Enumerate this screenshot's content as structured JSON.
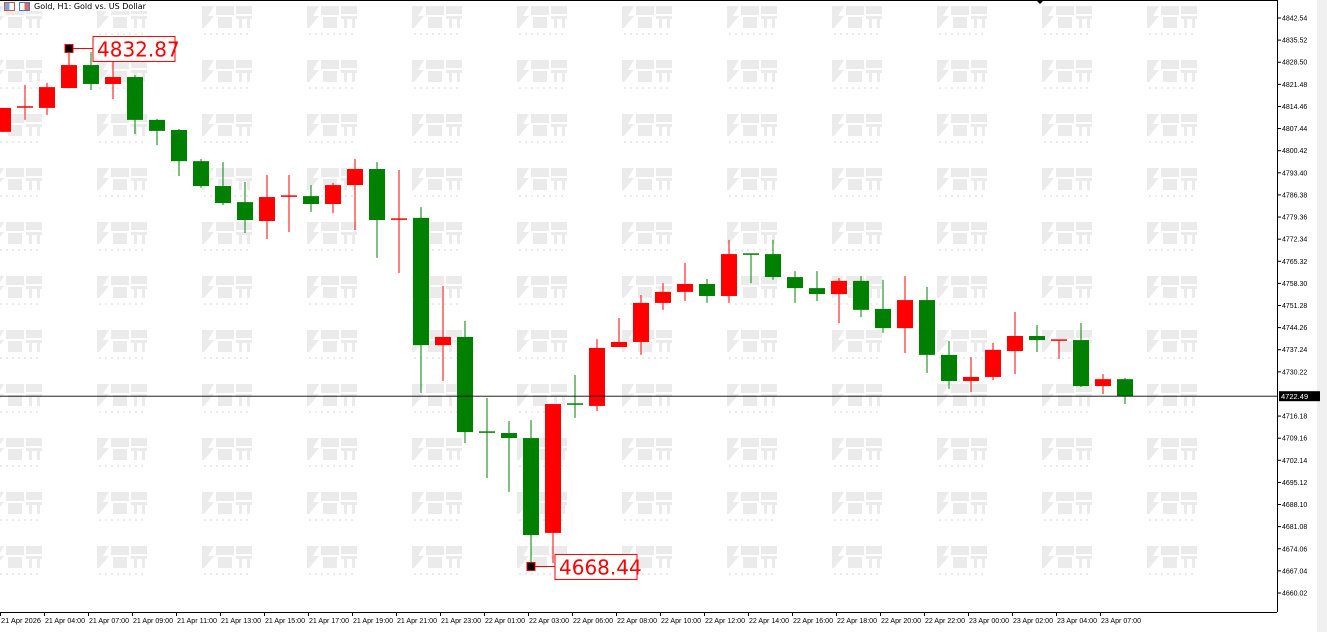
{
  "header": {
    "title": "Gold, H1:  Gold vs. US Dollar"
  },
  "watermark": {
    "text": "智昇",
    "subtext": "ZHISHENG"
  },
  "colors": {
    "up": "#ff0000",
    "down": "#008000",
    "axis": "#000000",
    "price_line": "#000000",
    "annotation": "#ff0000"
  },
  "chart_data": {
    "type": "candlestick",
    "title": "Gold, H1:  Gold vs. US Dollar",
    "up_color": "red",
    "down_color": "green",
    "ylim": [
      4656,
      4850
    ],
    "yticks": [
      "4842.54",
      "4835.52",
      "4828.50",
      "4821.48",
      "4814.46",
      "4807.44",
      "4800.42",
      "4793.40",
      "4786.38",
      "4779.36",
      "4772.34",
      "4765.32",
      "4758.30",
      "4751.28",
      "4744.26",
      "4737.24",
      "4730.22",
      "4716.18",
      "4709.16",
      "4702.14",
      "4695.12",
      "4688.10",
      "4681.08",
      "4674.06",
      "4667.04",
      "4660.02"
    ],
    "xticks": [
      "21 Apr 2026",
      "21 Apr 04:00",
      "21 Apr 07:00",
      "21 Apr 09:00",
      "21 Apr 11:00",
      "21 Apr 13:00",
      "21 Apr 15:00",
      "21 Apr 17:00",
      "21 Apr 19:00",
      "21 Apr 21:00",
      "21 Apr 23:00",
      "22 Apr 01:00",
      "22 Apr 03:00",
      "22 Apr 06:00",
      "22 Apr 08:00",
      "22 Apr 10:00",
      "22 Apr 12:00",
      "22 Apr 14:00",
      "22 Apr 16:00",
      "22 Apr 18:00",
      "22 Apr 20:00",
      "22 Apr 22:00",
      "23 Apr 00:00",
      "23 Apr 02:00",
      "23 Apr 04:00",
      "23 Apr 07:00"
    ],
    "current_price": "4722.49",
    "annotations": [
      {
        "label": "4832.87",
        "price": 4832.87,
        "candle": 3
      },
      {
        "label": "4668.44",
        "price": 4668.44,
        "candle": 24
      }
    ],
    "ohlc": [
      [
        4806.4,
        4814.0,
        4806.4,
        4814.0
      ],
      [
        4814.0,
        4821.3,
        4810.2,
        4814.3
      ],
      [
        4814.0,
        4821.9,
        4811.8,
        4820.6
      ],
      [
        4820.3,
        4832.87,
        4820.3,
        4827.6
      ],
      [
        4827.6,
        4831.7,
        4819.7,
        4821.6
      ],
      [
        4821.6,
        4829.2,
        4816.8,
        4823.8
      ],
      [
        4823.8,
        4824.4,
        4805.7,
        4810.2
      ],
      [
        4810.2,
        4810.5,
        4802.2,
        4806.7
      ],
      [
        4807.0,
        4807.3,
        4792.4,
        4797.1
      ],
      [
        4797.1,
        4797.8,
        4788.6,
        4789.2
      ],
      [
        4789.2,
        4796.8,
        4783.2,
        4783.8
      ],
      [
        4784.1,
        4790.5,
        4774.3,
        4778.4
      ],
      [
        4778.1,
        4792.7,
        4772.4,
        4785.7
      ],
      [
        4785.7,
        4792.7,
        4774.6,
        4786.0
      ],
      [
        4786.0,
        4789.5,
        4781.0,
        4783.5
      ],
      [
        4783.5,
        4790.2,
        4780.6,
        4789.5
      ],
      [
        4789.5,
        4797.8,
        4775.2,
        4794.6
      ],
      [
        4794.6,
        4796.8,
        4766.4,
        4778.4
      ],
      [
        4778.4,
        4794.3,
        4761.6,
        4778.7
      ],
      [
        4779.1,
        4782.5,
        4723.5,
        4738.7
      ],
      [
        4738.7,
        4757.5,
        4727.3,
        4741.3
      ],
      [
        4741.3,
        4746.4,
        4707.6,
        4711.1
      ],
      [
        4711.1,
        4721.9,
        4696.5,
        4711.0
      ],
      [
        4710.8,
        4714.6,
        4692.1,
        4709.2
      ],
      [
        4709.2,
        4714.9,
        4668.44,
        4678.4
      ],
      [
        4679.1,
        4720.0,
        4669.5,
        4720.0
      ],
      [
        4720.0,
        4729.2,
        4715.6,
        4719.7
      ],
      [
        4719.4,
        4740.6,
        4717.8,
        4737.8
      ],
      [
        4738.1,
        4747.3,
        4738.1,
        4739.7
      ],
      [
        4739.7,
        4754.6,
        4735.6,
        4752.1
      ],
      [
        4752.1,
        4758.4,
        4749.9,
        4755.6
      ],
      [
        4755.6,
        4764.8,
        4752.7,
        4758.1
      ],
      [
        4758.1,
        4759.7,
        4752.1,
        4754.3
      ],
      [
        4754.3,
        4772.1,
        4752.1,
        4767.6
      ],
      [
        4767.6,
        4767.6,
        4758.4,
        4767.3
      ],
      [
        4767.6,
        4772.1,
        4759.4,
        4760.3
      ],
      [
        4760.3,
        4762.2,
        4752.1,
        4756.8
      ],
      [
        4756.8,
        4762.2,
        4752.7,
        4754.9
      ],
      [
        4754.9,
        4760.0,
        4745.7,
        4759.1
      ],
      [
        4759.1,
        4760.6,
        4747.6,
        4749.9
      ],
      [
        4750.2,
        4759.4,
        4742.6,
        4744.1
      ],
      [
        4744.1,
        4760.6,
        4736.2,
        4753.0
      ],
      [
        4753.0,
        4757.2,
        4729.9,
        4735.6
      ],
      [
        4735.6,
        4740.0,
        4724.8,
        4727.3
      ],
      [
        4727.3,
        4734.9,
        4723.8,
        4728.6
      ],
      [
        4728.6,
        4739.4,
        4727.6,
        4737.2
      ],
      [
        4736.8,
        4749.2,
        4729.5,
        4741.6
      ],
      [
        4741.6,
        4745.1,
        4736.5,
        4740.3
      ],
      [
        4740.0,
        4740.3,
        4734.3,
        4740.3
      ],
      [
        4740.3,
        4745.7,
        4725.4,
        4725.7
      ],
      [
        4725.7,
        4729.5,
        4723.2,
        4727.9
      ],
      [
        4727.9,
        4728.3,
        4720.0,
        4722.49
      ]
    ]
  }
}
